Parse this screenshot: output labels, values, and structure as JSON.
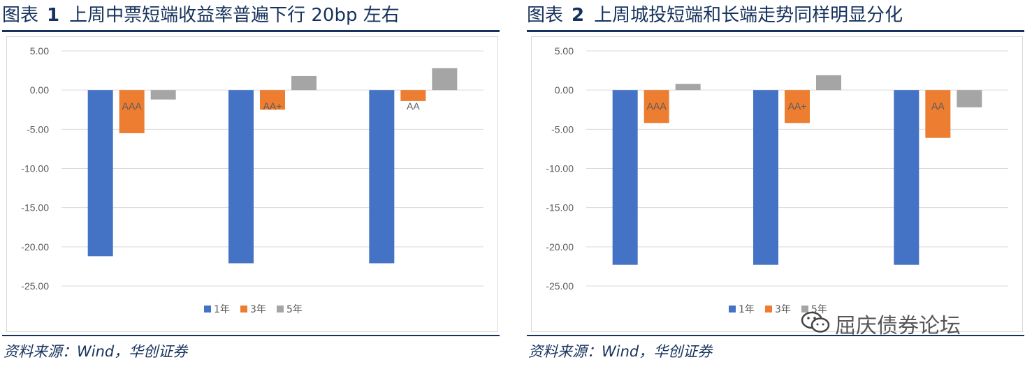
{
  "charts": [
    {
      "fig_label": "图表",
      "fig_num": "1",
      "title": "上周中票短端收益率普遍下行 20bp 左右",
      "source": "资料来源：Wind，华创证券"
    },
    {
      "fig_label": "图表",
      "fig_num": "2",
      "title": "上周城投短端和长端走势同样明显分化",
      "source": "资料来源：Wind，华创证券"
    }
  ],
  "watermark": {
    "text": "屈庆债券论坛",
    "icon": "wechat-icon"
  },
  "colors": {
    "s1": "#4472c4",
    "s2": "#ed7d31",
    "s3": "#a5a5a5",
    "text": "#595959",
    "grid": "#d9d9d9",
    "title": "#16325c"
  },
  "chart_data": [
    {
      "type": "bar",
      "title": "上周中票短端收益率普遍下行 20bp 左右",
      "categories": [
        "AAA",
        "AA+",
        "AA"
      ],
      "series": [
        {
          "name": "1年",
          "values": [
            -21.2,
            -22.1,
            -22.1
          ]
        },
        {
          "name": "3年",
          "values": [
            -5.5,
            -2.5,
            -1.4
          ]
        },
        {
          "name": "5年",
          "values": [
            -1.2,
            1.8,
            2.8
          ]
        }
      ],
      "yticks": [
        "5.00",
        "0.00",
        "-5.00",
        "-10.00",
        "-15.00",
        "-20.00",
        "-25.00"
      ],
      "ylim": [
        -25,
        5
      ],
      "grid": true,
      "legend": "bottom"
    },
    {
      "type": "bar",
      "title": "上周城投短端和长端走势同样明显分化",
      "categories": [
        "AAA",
        "AA+",
        "AA"
      ],
      "series": [
        {
          "name": "1年",
          "values": [
            -22.3,
            -22.3,
            -22.3
          ]
        },
        {
          "name": "3年",
          "values": [
            -4.2,
            -4.2,
            -6.1
          ]
        },
        {
          "name": "5年",
          "values": [
            0.8,
            1.9,
            -2.2
          ]
        }
      ],
      "yticks": [
        "5.00",
        "0.00",
        "-5.00",
        "-10.00",
        "-15.00",
        "-20.00",
        "-25.00"
      ],
      "ylim": [
        -25,
        5
      ],
      "grid": true,
      "legend": "bottom"
    }
  ]
}
